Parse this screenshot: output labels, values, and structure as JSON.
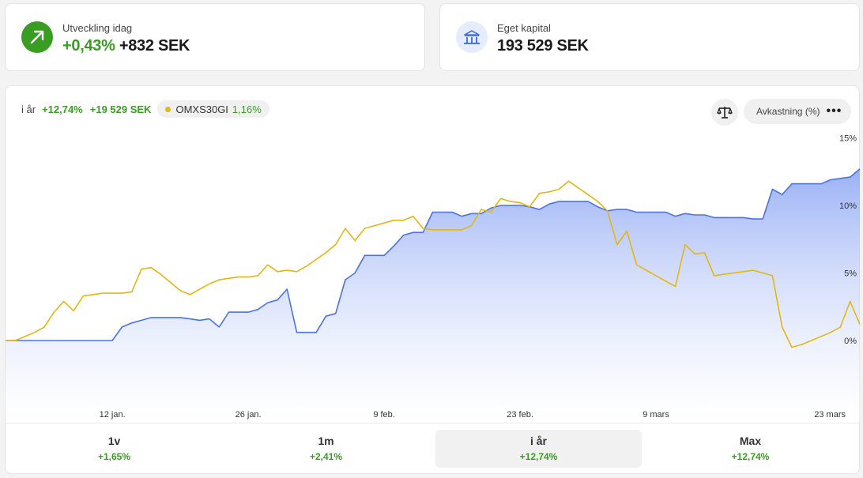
{
  "summary": {
    "development": {
      "label": "Utveckling idag",
      "percent": "+0,43%",
      "amount": "+832 SEK",
      "icon": "arrow-up-right-icon"
    },
    "capital": {
      "label": "Eget kapital",
      "value": "193 529 SEK",
      "icon": "bank-icon"
    }
  },
  "chart_header": {
    "period_label": "i år",
    "percent": "+12,74%",
    "amount": "+19 529 SEK",
    "index_name": "OMXS30GI",
    "index_percent": "1,16%",
    "metric_button": "Avkastning (%)",
    "scale_icon": "balance-scale-icon",
    "more_icon": "more-dots-icon"
  },
  "colors": {
    "portfolio": "#4a73e8",
    "index": "#e2b714",
    "positive": "#3a9d23"
  },
  "chart_data": {
    "type": "line",
    "title": "",
    "x_labels": [
      "12 jan.",
      "26 jan.",
      "9 feb.",
      "23 feb.",
      "9 mars",
      "23 mars"
    ],
    "x_label_index": [
      11,
      25,
      39,
      53,
      67,
      81
    ],
    "y_ticks": [
      "15%",
      "10%",
      "5%",
      "0%"
    ],
    "ylim": [
      -4,
      15.5
    ],
    "grid": false,
    "series": [
      {
        "name": "",
        "style": "area",
        "values": [
          0.0,
          0.0,
          0.0,
          0.0,
          0.0,
          0.0,
          0.0,
          0.0,
          0.0,
          0.0,
          0.0,
          0.0,
          1.0,
          1.3,
          1.5,
          1.7,
          1.7,
          1.7,
          1.7,
          1.6,
          1.5,
          1.6,
          1.0,
          2.1,
          2.1,
          2.1,
          2.3,
          2.8,
          3.0,
          3.8,
          0.6,
          0.6,
          0.6,
          1.8,
          2.0,
          4.5,
          5.0,
          6.3,
          6.3,
          6.3,
          7.0,
          7.8,
          8.0,
          8.0,
          9.5,
          9.5,
          9.5,
          9.2,
          9.4,
          9.4,
          9.8,
          10.0,
          10.0,
          10.0,
          9.9,
          9.7,
          10.1,
          10.3,
          10.3,
          10.3,
          10.3,
          9.9,
          9.6,
          9.7,
          9.7,
          9.5,
          9.5,
          9.5,
          9.5,
          9.2,
          9.4,
          9.3,
          9.3,
          9.1,
          9.1,
          9.1,
          9.1,
          9.0,
          9.0,
          11.2,
          10.8,
          11.6,
          11.6,
          11.6,
          11.6,
          11.9,
          12.0,
          12.1,
          12.7
        ]
      },
      {
        "name": "OMXS30GI",
        "style": "line",
        "values": [
          0.0,
          0.0,
          0.3,
          0.6,
          1.0,
          2.1,
          2.9,
          2.2,
          3.3,
          3.4,
          3.5,
          3.5,
          3.5,
          3.6,
          5.3,
          5.4,
          4.9,
          4.3,
          3.7,
          3.4,
          3.8,
          4.2,
          4.5,
          4.6,
          4.7,
          4.7,
          4.8,
          5.6,
          5.1,
          5.2,
          5.1,
          5.5,
          6.0,
          6.5,
          7.1,
          8.3,
          7.4,
          8.3,
          8.5,
          8.7,
          8.9,
          8.9,
          9.2,
          8.3,
          8.2,
          8.2,
          8.2,
          8.2,
          8.5,
          9.7,
          9.5,
          10.5,
          10.3,
          10.2,
          9.9,
          10.9,
          11.0,
          11.2,
          11.8,
          11.3,
          10.8,
          10.3,
          9.6,
          7.1,
          8.1,
          5.6,
          5.2,
          4.8,
          4.4,
          4.0,
          7.1,
          6.4,
          6.5,
          4.8,
          4.9,
          5.0,
          5.1,
          5.2,
          5.0,
          4.8,
          1.0,
          -0.5,
          -0.3,
          0.0,
          0.3,
          0.6,
          1.0,
          2.9,
          1.2
        ]
      }
    ]
  },
  "periods": [
    {
      "name": "1v",
      "value": "+1,65%",
      "active": false
    },
    {
      "name": "1m",
      "value": "+2,41%",
      "active": false
    },
    {
      "name": "i år",
      "value": "+12,74%",
      "active": true
    },
    {
      "name": "Max",
      "value": "+12,74%",
      "active": false
    }
  ]
}
